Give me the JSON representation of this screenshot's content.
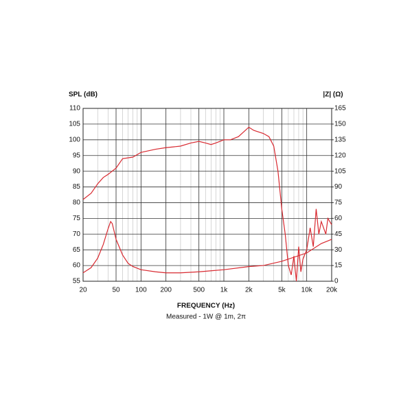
{
  "chart_data": {
    "type": "line",
    "ylabel": "SPL (dB)",
    "y2label": "|Z| (Ω)",
    "xlabel": "FREQUENCY (Hz)",
    "subtitle": "Measured - 1W @ 1m, 2π",
    "xscale": "log",
    "grid": true,
    "xlim": [
      20,
      20000
    ],
    "xticks": [
      20,
      50,
      100,
      200,
      500,
      {
        "value": 1000,
        "label": "1k"
      },
      {
        "value": 2000,
        "label": "2k"
      },
      {
        "value": 5000,
        "label": "5k"
      },
      {
        "value": 10000,
        "label": "10k"
      },
      {
        "value": 20000,
        "label": "20k"
      }
    ],
    "ylim": [
      55,
      110
    ],
    "yticks": [
      55,
      60,
      65,
      70,
      75,
      80,
      85,
      90,
      95,
      100,
      105,
      110
    ],
    "y2lim": [
      0,
      165
    ],
    "y2ticks": [
      0,
      15,
      30,
      45,
      60,
      75,
      90,
      105,
      120,
      135,
      150,
      165
    ],
    "series": [
      {
        "color": "#d8282f",
        "axis": "y",
        "x": [
          20,
          25,
          30,
          35,
          40,
          50,
          60,
          80,
          100,
          150,
          200,
          300,
          400,
          500,
          600,
          700,
          800,
          1000,
          1200,
          1500,
          2000,
          2300,
          3000,
          3500,
          4000,
          4500,
          5000,
          5500,
          6000,
          6500,
          7000,
          7500,
          8000,
          8500,
          9000,
          10000,
          11000,
          12000,
          13000,
          14000,
          15000,
          17000,
          18000,
          20000
        ],
        "values": [
          81,
          83,
          86,
          88,
          89,
          91,
          94,
          94.5,
          96,
          97,
          97.5,
          98,
          99,
          99.5,
          99,
          98.5,
          99,
          100,
          100,
          101,
          104,
          103,
          102,
          101,
          98,
          90,
          78,
          70,
          60,
          57,
          63,
          55,
          66,
          58,
          62,
          65,
          72,
          66,
          78,
          70,
          74,
          70,
          75,
          73
        ]
      },
      {
        "color": "#d8282f",
        "axis": "y2",
        "x": [
          20,
          25,
          30,
          35,
          40,
          43,
          45,
          50,
          60,
          70,
          80,
          100,
          150,
          200,
          300,
          500,
          700,
          1000,
          2000,
          3000,
          5000,
          10000,
          15000,
          20000
        ],
        "values": [
          8,
          13,
          22,
          35,
          50,
          57,
          55,
          40,
          25,
          17,
          14,
          11,
          9,
          8,
          8,
          9,
          10,
          11,
          14,
          15,
          19,
          27,
          36,
          40
        ]
      }
    ]
  }
}
